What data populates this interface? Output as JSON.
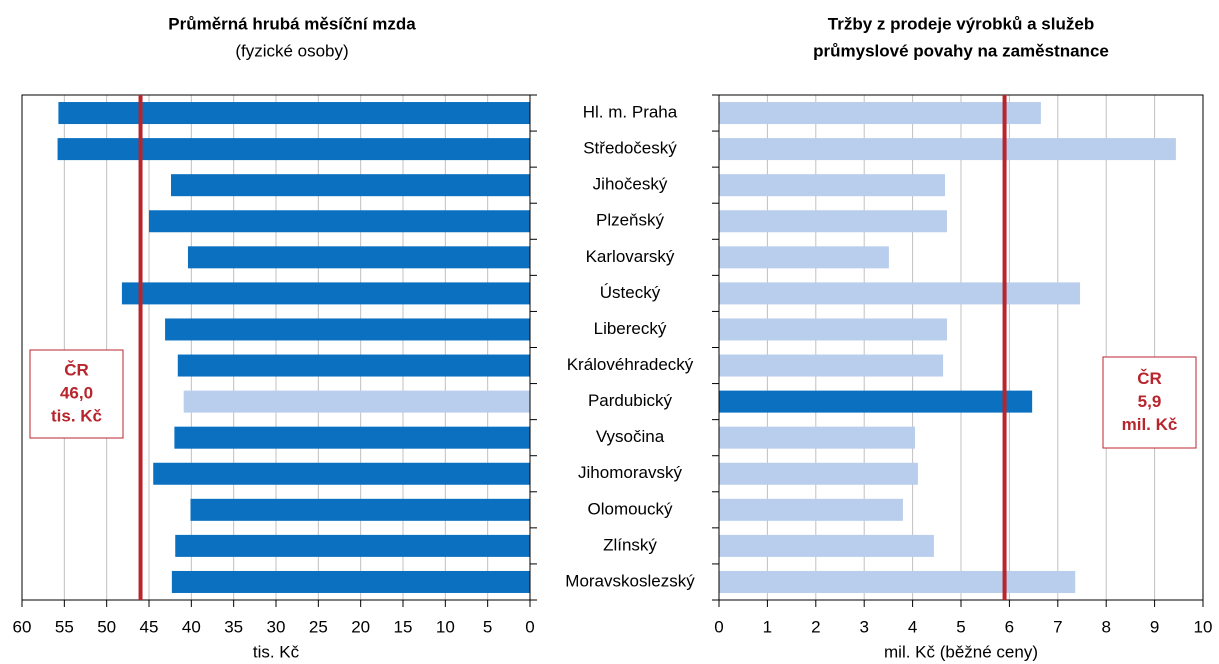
{
  "chart_data": [
    {
      "type": "barh",
      "title": "Průměrná hrubá měsíční mzda",
      "subtitle": "(fyzické osoby)",
      "xlabel": "tis. Kč",
      "categories": [
        "Hl. m. Praha",
        "Středočeský",
        "Jihočeský",
        "Plzeňský",
        "Karlovarský",
        "Ústecký",
        "Liberecký",
        "Královéhradecký",
        "Pardubický",
        "Vysočina",
        "Jihomoravský",
        "Olomoucký",
        "Zlínský",
        "Moravskoslezský"
      ],
      "values": [
        55.7,
        55.8,
        42.4,
        45.0,
        40.4,
        48.2,
        43.1,
        41.6,
        40.9,
        42.0,
        44.5,
        40.1,
        41.9,
        42.3
      ],
      "colors": [
        "#0a70bf",
        "#0a70bf",
        "#0a70bf",
        "#0a70bf",
        "#0a70bf",
        "#0a70bf",
        "#0a70bf",
        "#0a70bf",
        "#b9cdec",
        "#0a70bf",
        "#0a70bf",
        "#0a70bf",
        "#0a70bf",
        "#0a70bf"
      ],
      "xlim": [
        60,
        0
      ],
      "xticks": [
        60,
        55,
        50,
        45,
        40,
        35,
        30,
        25,
        20,
        15,
        10,
        5,
        0
      ],
      "grid": true,
      "reference": {
        "value": 46.0,
        "color": "#b8252d",
        "label_lines": [
          "ČR",
          "46,0",
          "tis. Kč"
        ]
      }
    },
    {
      "type": "barh",
      "title_lines": [
        "Tržby z prodeje výrobků a služeb",
        "průmyslové povahy na zaměstnance"
      ],
      "xlabel": "mil. Kč (běžné ceny)",
      "values": [
        6.65,
        9.44,
        4.67,
        4.71,
        3.51,
        7.46,
        4.71,
        4.63,
        6.47,
        4.05,
        4.11,
        3.8,
        4.44,
        7.36
      ],
      "colors": [
        "#b9cdec",
        "#b9cdec",
        "#b9cdec",
        "#b9cdec",
        "#b9cdec",
        "#b9cdec",
        "#b9cdec",
        "#b9cdec",
        "#0a70bf",
        "#b9cdec",
        "#b9cdec",
        "#b9cdec",
        "#b9cdec",
        "#b9cdec"
      ],
      "xlim": [
        0,
        10
      ],
      "xticks": [
        0,
        1,
        2,
        3,
        4,
        5,
        6,
        7,
        8,
        9,
        10
      ],
      "grid": true,
      "reference": {
        "value": 5.9,
        "color": "#b8252d",
        "label_lines": [
          "ČR",
          "5,9",
          "mil. Kč"
        ]
      }
    }
  ]
}
